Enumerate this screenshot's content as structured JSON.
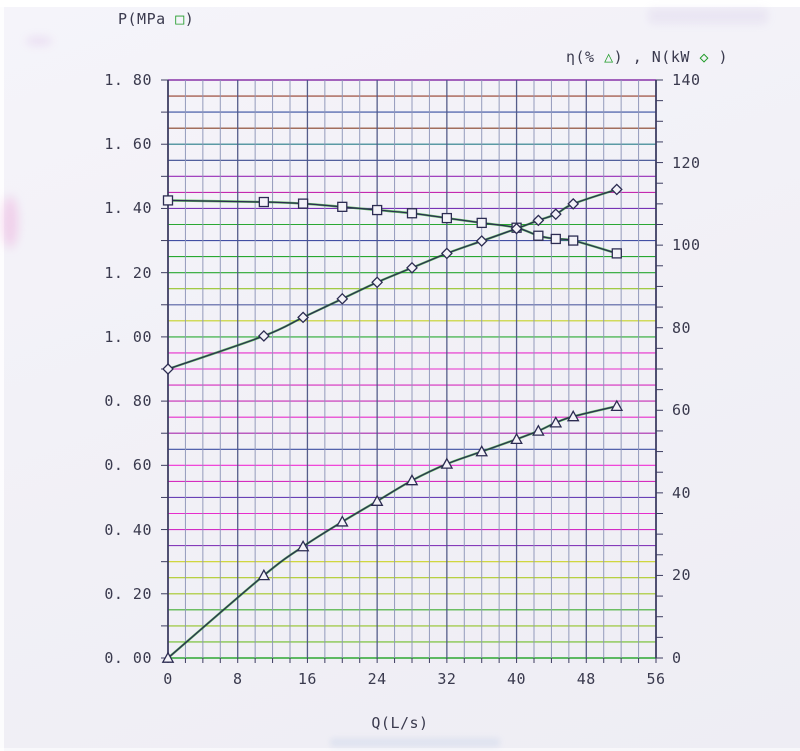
{
  "page": {
    "background": "#f1f0f6"
  },
  "legend_left": {
    "pre": "P(MPa ",
    "glyph": "□",
    "post": ")"
  },
  "legend_right": {
    "pre": "η(% ",
    "glyph1": "△",
    "mid": ") , N(kW ",
    "glyph2": "◇",
    "post": " )"
  },
  "chart_data": {
    "type": "line",
    "title": "",
    "xlabel": "Q(L/s)",
    "xlim": [
      0,
      56
    ],
    "x_ticks": [
      0,
      8,
      16,
      24,
      32,
      40,
      48,
      56
    ],
    "x_tick_labels": [
      "0",
      "8",
      "16",
      "24",
      "32",
      "40",
      "48",
      "56"
    ],
    "grid": "on",
    "left_axis": {
      "label": "P (MPa)",
      "lim": [
        0,
        1.8
      ],
      "ticks": [
        1.8,
        1.6,
        1.4,
        1.2,
        1.0,
        0.8,
        0.6,
        0.4,
        0.2,
        0.0
      ],
      "tick_labels": [
        "1. 80",
        "1. 60",
        "1. 40",
        "1. 20",
        "1. 00",
        "0. 80",
        "0. 60",
        "0. 40",
        "0. 20",
        "0. 00"
      ]
    },
    "right_axis": {
      "label": "η (%) , N (kW)",
      "lim": [
        0,
        140
      ],
      "ticks": [
        140,
        120,
        100,
        80,
        60,
        40,
        20,
        0
      ],
      "tick_labels": [
        "140",
        "120",
        "100",
        "80",
        "60",
        "40",
        "20",
        "0"
      ]
    },
    "x_shared": [
      0,
      11,
      15.5,
      20,
      24,
      28,
      32,
      36,
      40,
      42.5,
      44.5,
      46.5,
      51.5
    ],
    "series": [
      {
        "name": "P (MPa)",
        "marker": "square",
        "axis": "left",
        "values": [
          1.425,
          1.42,
          1.415,
          1.405,
          1.395,
          1.385,
          1.37,
          1.355,
          1.34,
          1.315,
          1.305,
          1.3,
          1.26
        ]
      },
      {
        "name": "N (kW)",
        "marker": "diamond",
        "axis": "right",
        "values": [
          70,
          78,
          82.5,
          87,
          91,
          94.5,
          98,
          101,
          104,
          106,
          107.5,
          110,
          113.5
        ]
      },
      {
        "name": "η (%)",
        "marker": "triangle",
        "axis": "right",
        "values": [
          0,
          20,
          27,
          33,
          38,
          43,
          47,
          50,
          53,
          55,
          57,
          58.5,
          61
        ]
      }
    ],
    "grid_style": {
      "h_step_left_units": 0.05,
      "v_step_x_units": 2,
      "v_minor_color": "#8e96b8",
      "v_major_color": "#4d5685",
      "border_color": "#3c3c60",
      "curve_core_color": "#2c2c52",
      "curve_halo_color": "#1fa31f",
      "h_colors": [
        "#7d1fa0",
        "#8a2b16",
        "#233e96",
        "#7c3012",
        "#12707c",
        "#283a85",
        "#8c17b0",
        "#c015a8",
        "#6a1fae",
        "#15a01e",
        "#2f3e9a",
        "#13a01c",
        "#13a01c",
        "#8cc014",
        "#44509a",
        "#c2cf12",
        "#16a31f",
        "#e61ac8",
        "#e61ac8",
        "#d318b8",
        "#c217ae",
        "#e61ac8",
        "#a016a6",
        "#2b3e9a",
        "#f01bd2",
        "#d318b8",
        "#5b2fb0",
        "#e61ac8",
        "#cf18c0",
        "#7a28b4",
        "#c9d011",
        "#a8c813",
        "#9cc412",
        "#2fa81e",
        "#8abf14",
        "#63b816",
        "#18a01e"
      ]
    }
  }
}
